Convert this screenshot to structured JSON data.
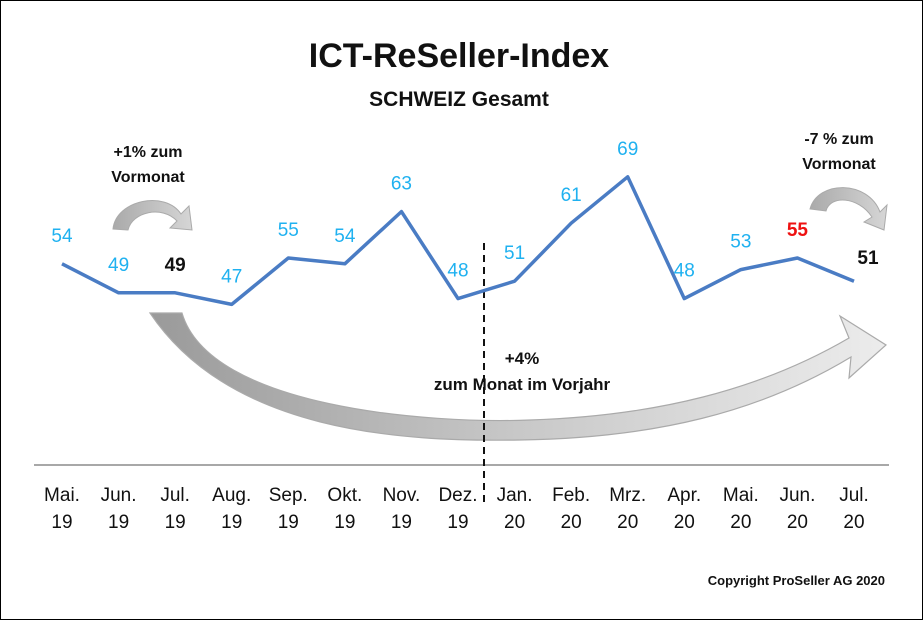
{
  "chart_data": {
    "type": "line",
    "title": "ICT-ReSeller-Index",
    "subtitle": "SCHWEIZ Gesamt",
    "categories": [
      [
        "Mai.",
        "19"
      ],
      [
        "Jun.",
        "19"
      ],
      [
        "Jul.",
        "19"
      ],
      [
        "Aug.",
        "19"
      ],
      [
        "Sep.",
        "19"
      ],
      [
        "Okt.",
        "19"
      ],
      [
        "Nov.",
        "19"
      ],
      [
        "Dez.",
        "19"
      ],
      [
        "Jan.",
        "20"
      ],
      [
        "Feb.",
        "20"
      ],
      [
        "Mrz.",
        "20"
      ],
      [
        "Apr.",
        "20"
      ],
      [
        "Mai.",
        "20"
      ],
      [
        "Jun.",
        "20"
      ],
      [
        "Jul.",
        "20"
      ]
    ],
    "series": [
      {
        "name": "ICT-ReSeller-Index",
        "values": [
          54,
          49,
          49,
          47,
          55,
          54,
          63,
          48,
          51,
          61,
          69,
          48,
          53,
          55,
          51
        ]
      }
    ],
    "label_styles": {
      "default": "#1fb1f0",
      "highlight_prev": {
        "index": 2,
        "color": "#111111"
      },
      "highlight_red": {
        "index": 13,
        "color": "#ee1111"
      },
      "highlight_current": {
        "index": 14,
        "color": "#111111"
      }
    },
    "line_color": "#4a7cc4",
    "ylim": [
      30,
      80
    ],
    "annotations": {
      "left_note": [
        "+1% zum",
        "Vormonat"
      ],
      "right_note": [
        "-7 % zum",
        "Vormonat"
      ],
      "year_note": [
        "+4%",
        "zum Monat im Vorjahr"
      ]
    },
    "copyright": "Copyright ProSeller AG 2020"
  }
}
